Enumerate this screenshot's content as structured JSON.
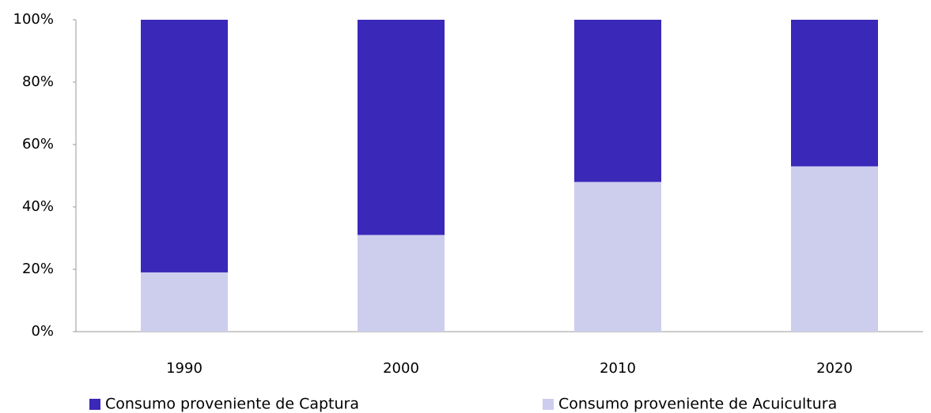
{
  "chart_data": {
    "type": "stacked_bar",
    "categories": [
      "1990",
      "2000",
      "2010",
      "2020"
    ],
    "series": [
      {
        "name": "Consumo proveniente de Captura",
        "color": "#3a28b9",
        "values": [
          81,
          69,
          52,
          47
        ]
      },
      {
        "name": "Consumo proveniente de Acuicultura",
        "color": "#cdcdee",
        "values": [
          19,
          31,
          48,
          53
        ]
      }
    ],
    "ylim": [
      0,
      100
    ],
    "yticks": [
      {
        "value": 0,
        "label": "0%"
      },
      {
        "value": 20,
        "label": "20%"
      },
      {
        "value": 40,
        "label": "40%"
      },
      {
        "value": 60,
        "label": "60%"
      },
      {
        "value": 80,
        "label": "80%"
      },
      {
        "value": 100,
        "label": "100%"
      }
    ],
    "grid": false
  }
}
